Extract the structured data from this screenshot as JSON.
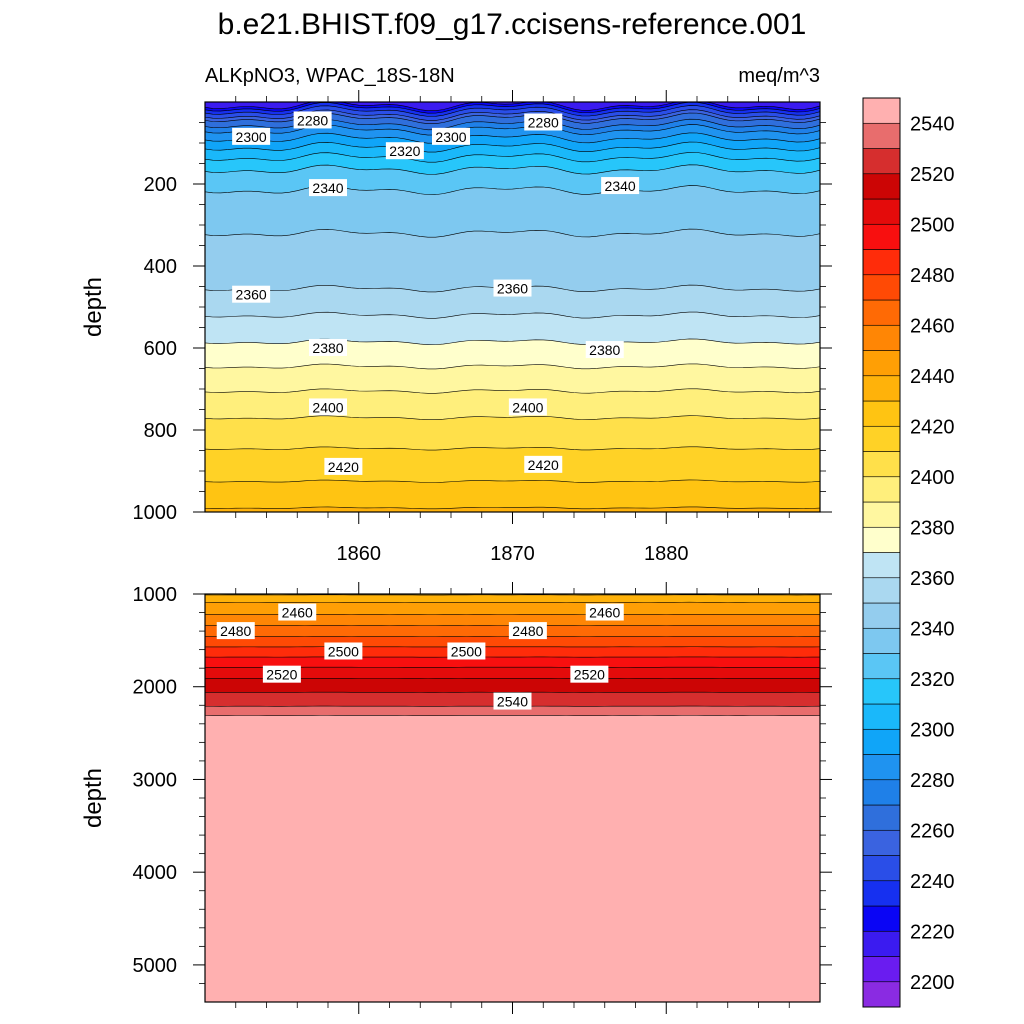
{
  "title": "b.e21.BHIST.f09_g17.ccisens-reference.001",
  "left_subtitle": "ALKpNO3, WPAC_18S-18N",
  "right_subtitle": "meq/m^3",
  "colorbar": {
    "levels": [
      2200,
      2210,
      2220,
      2230,
      2240,
      2250,
      2260,
      2270,
      2280,
      2290,
      2300,
      2310,
      2320,
      2330,
      2340,
      2350,
      2360,
      2370,
      2380,
      2390,
      2400,
      2410,
      2420,
      2430,
      2440,
      2450,
      2460,
      2470,
      2480,
      2490,
      2500,
      2510,
      2520,
      2530,
      2540,
      2550
    ],
    "colors": [
      "#8a2be2",
      "#6a1cf0",
      "#3b1bf0",
      "#0a05f5",
      "#1630f0",
      "#2a4ee8",
      "#3a63e0",
      "#2f6fdc",
      "#1f80e8",
      "#1f93f0",
      "#10a5f8",
      "#1ab8fa",
      "#27c6fa",
      "#5ac6f5",
      "#7dc8f0",
      "#94cdee",
      "#aad8f0",
      "#bfe4f4",
      "#ffffcc",
      "#fff7a0",
      "#ffef7c",
      "#ffe04a",
      "#ffd226",
      "#ffc412",
      "#ffb20a",
      "#ff9f05",
      "#ff8605",
      "#ff6a05",
      "#ff4a05",
      "#ff2c0a",
      "#f80f0f",
      "#e40b0b",
      "#cc0505",
      "#d62e2e",
      "#e86d6d",
      "#ffb0b0"
    ],
    "tick_labels": [
      "2200",
      "2220",
      "2240",
      "2260",
      "2280",
      "2300",
      "2320",
      "2340",
      "2360",
      "2380",
      "2400",
      "2420",
      "2440",
      "2460",
      "2480",
      "2500",
      "2520",
      "2540"
    ]
  },
  "chart_data": [
    {
      "type": "heatmap",
      "panel": "upper",
      "ylabel": "depth",
      "xlim": [
        1850,
        1890
      ],
      "ylim": [
        1000,
        0
      ],
      "x_ticks": [
        1860,
        1870,
        1880
      ],
      "y_ticks": [
        200,
        400,
        600,
        800,
        1000
      ],
      "contour_labels": [
        {
          "text": "2280",
          "x": 1857,
          "y": 45
        },
        {
          "text": "2280",
          "x": 1872,
          "y": 50
        },
        {
          "text": "2300",
          "x": 1853,
          "y": 85
        },
        {
          "text": "2300",
          "x": 1866,
          "y": 85
        },
        {
          "text": "2320",
          "x": 1863,
          "y": 120
        },
        {
          "text": "2340",
          "x": 1858,
          "y": 210
        },
        {
          "text": "2340",
          "x": 1877,
          "y": 205
        },
        {
          "text": "2360",
          "x": 1853,
          "y": 470
        },
        {
          "text": "2360",
          "x": 1870,
          "y": 455
        },
        {
          "text": "2380",
          "x": 1858,
          "y": 600
        },
        {
          "text": "2380",
          "x": 1876,
          "y": 605
        },
        {
          "text": "2400",
          "x": 1858,
          "y": 745
        },
        {
          "text": "2400",
          "x": 1871,
          "y": 745
        },
        {
          "text": "2420",
          "x": 1859,
          "y": 890
        },
        {
          "text": "2420",
          "x": 1872,
          "y": 885
        }
      ]
    },
    {
      "type": "heatmap",
      "panel": "lower",
      "ylabel": "depth",
      "xlim": [
        1850,
        1890
      ],
      "ylim": [
        5400,
        1000
      ],
      "y_ticks": [
        1000,
        2000,
        3000,
        4000,
        5000
      ],
      "contour_labels": [
        {
          "text": "2460",
          "x": 1856,
          "y": 1200
        },
        {
          "text": "2460",
          "x": 1876,
          "y": 1200
        },
        {
          "text": "2480",
          "x": 1852,
          "y": 1400
        },
        {
          "text": "2480",
          "x": 1871,
          "y": 1400
        },
        {
          "text": "2500",
          "x": 1859,
          "y": 1620
        },
        {
          "text": "2500",
          "x": 1867,
          "y": 1620
        },
        {
          "text": "2520",
          "x": 1855,
          "y": 1870
        },
        {
          "text": "2520",
          "x": 1875,
          "y": 1870
        },
        {
          "text": "2540",
          "x": 1870,
          "y": 2160
        }
      ]
    }
  ]
}
